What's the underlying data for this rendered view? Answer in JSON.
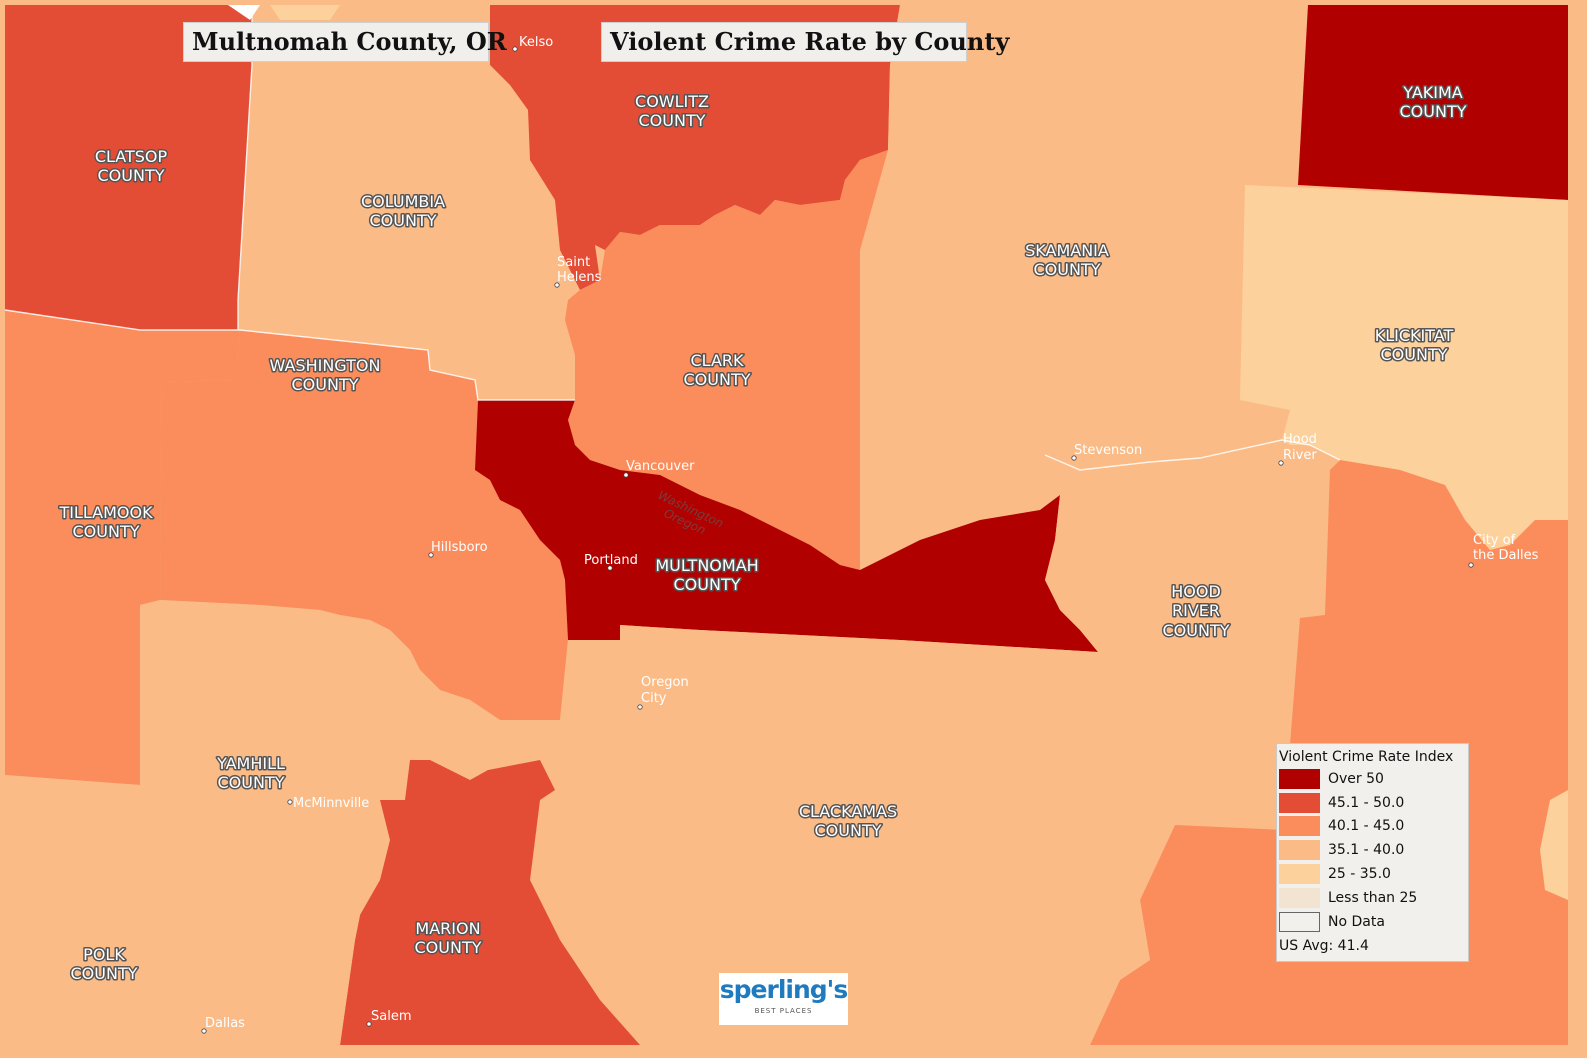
{
  "header": {
    "location_title": "Multnomah County, OR",
    "map_title": "Violent Crime Rate by County"
  },
  "colors": {
    "over_50": "#b10000",
    "c45_50": "#e34d35",
    "c40_45": "#fa8d5b",
    "c35_40": "#fbbb86",
    "c25_35": "#fdd19c",
    "lt25": "#f3e4d1",
    "no_data": "#f2f0ed"
  },
  "counties": [
    {
      "name_line1": "CLATSOP",
      "name_line2": "COUNTY",
      "category": "45.1 - 50.0"
    },
    {
      "name_line1": "COLUMBIA",
      "name_line2": "COUNTY",
      "category": "35.1 - 40.0"
    },
    {
      "name_line1": "COWLITZ",
      "name_line2": "COUNTY",
      "category": "45.1 - 50.0"
    },
    {
      "name_line1": "SKAMANIA",
      "name_line2": "COUNTY",
      "category": "35.1 - 40.0"
    },
    {
      "name_line1": "YAKIMA",
      "name_line2": "COUNTY",
      "category": "Over 50"
    },
    {
      "name_line1": "KLICKITAT",
      "name_line2": "COUNTY",
      "category": "25 - 35.0"
    },
    {
      "name_line1": "CLARK",
      "name_line2": "COUNTY",
      "category": "40.1 - 45.0"
    },
    {
      "name_line1": "WASHINGTON",
      "name_line2": "COUNTY",
      "category": "40.1 - 45.0"
    },
    {
      "name_line1": "TILLAMOOK",
      "name_line2": "COUNTY",
      "category": "40.1 - 45.0"
    },
    {
      "name_line1": "MULTNOMAH",
      "name_line2": "COUNTY",
      "category": "Over 50"
    },
    {
      "name_line1": "HOOD",
      "name_line2": "RIVER",
      "name_line3": "COUNTY",
      "category": "35.1 - 40.0"
    },
    {
      "name_line1": "YAMHILL",
      "name_line2": "COUNTY",
      "category": "35.1 - 40.0"
    },
    {
      "name_line1": "CLACKAMAS",
      "name_line2": "COUNTY",
      "category": "35.1 - 40.0"
    },
    {
      "name_line1": "MARION",
      "name_line2": "COUNTY",
      "category": "45.1 - 50.0"
    },
    {
      "name_line1": "POLK",
      "name_line2": "COUNTY",
      "category": "35.1 - 40.0"
    }
  ],
  "cities": {
    "kelso": "Kelso",
    "saint_helens_1": "Saint",
    "saint_helens_2": "Helens",
    "vancouver": "Vancouver",
    "stevenson": "Stevenson",
    "hood_river_1": "Hood",
    "hood_river_2": "River",
    "hillsboro": "Hillsboro",
    "portland": "Portland",
    "city_of_dalles_1": "City of",
    "city_of_dalles_2": "the Dalles",
    "oregon_city_1": "Oregon",
    "oregon_city_2": "City",
    "mcminnville": "McMinnville",
    "dallas": "Dallas",
    "salem": "Salem"
  },
  "border_labels": {
    "washington": "Washington",
    "oregon": "Oregon"
  },
  "legend": {
    "title": "Violent Crime Rate Index",
    "items": [
      {
        "label": "Over 50",
        "color": "#b10000"
      },
      {
        "label": "45.1 - 50.0",
        "color": "#e34d35"
      },
      {
        "label": "40.1 - 45.0",
        "color": "#fa8d5b"
      },
      {
        "label": "35.1 - 40.0",
        "color": "#fbbb86"
      },
      {
        "label": "25 - 35.0",
        "color": "#fdd19c"
      },
      {
        "label": "Less than 25",
        "color": "#f3e4d1"
      },
      {
        "label": "No Data",
        "color": "#f2f0ed"
      }
    ],
    "us_avg": "US Avg: 41.4"
  },
  "logo": {
    "word": "sperling's",
    "sub": "BEST PLACES"
  }
}
